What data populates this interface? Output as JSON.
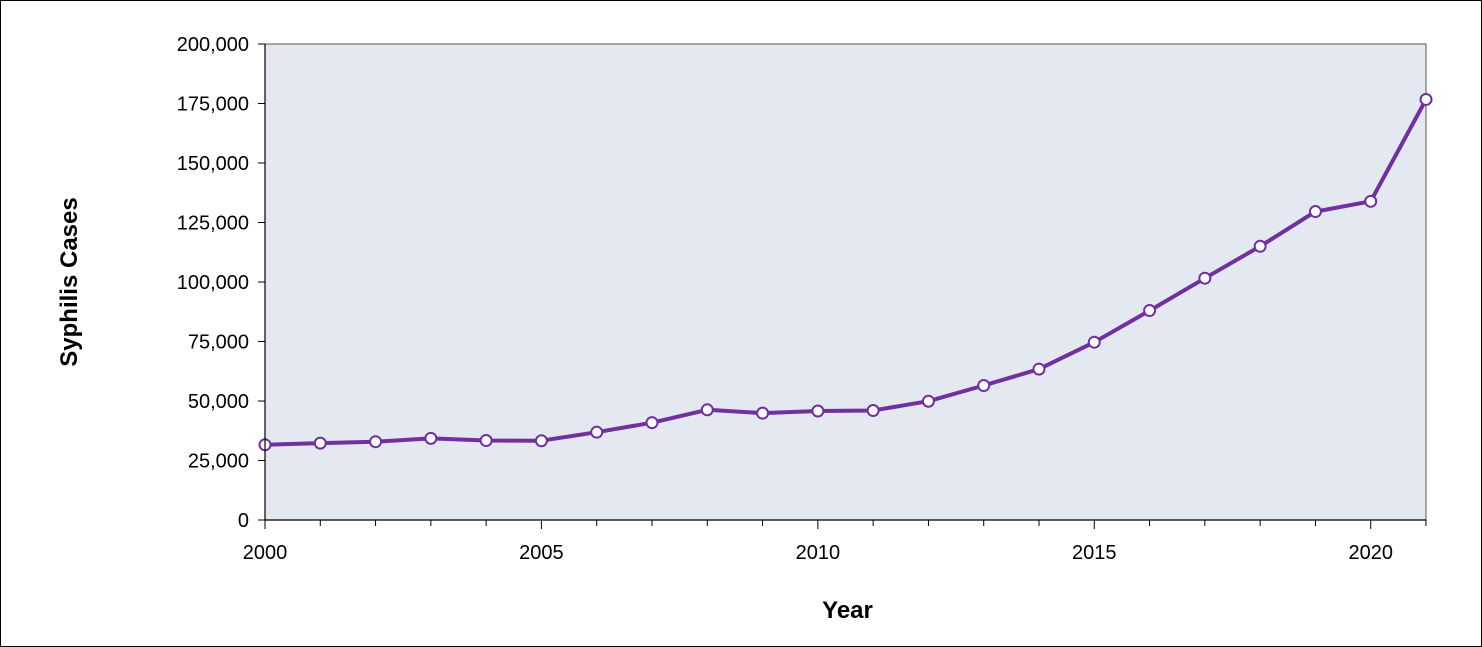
{
  "chart_data": {
    "type": "line",
    "title": "",
    "xlabel": "Year",
    "ylabel": "Syphilis  Cases",
    "xlim": [
      2000,
      2021
    ],
    "ylim": [
      0,
      200000
    ],
    "x_ticks": [
      2000,
      2005,
      2010,
      2015,
      2020
    ],
    "x_tick_labels": [
      "2000",
      "2005",
      "2010",
      "2015",
      "2020"
    ],
    "y_ticks": [
      0,
      25000,
      50000,
      75000,
      100000,
      125000,
      150000,
      175000,
      200000
    ],
    "y_tick_labels": [
      "0",
      "25,000",
      "50,000",
      "75,000",
      "100,000",
      "125,000",
      "150,000",
      "175,000",
      "200,000"
    ],
    "grid": false,
    "legend": "none",
    "series": [
      {
        "x": [
          2000,
          2001,
          2002,
          2003,
          2004,
          2005,
          2006,
          2007,
          2008,
          2009,
          2010,
          2011,
          2012,
          2013,
          2014,
          2015,
          2016,
          2017,
          2018,
          2019,
          2020,
          2021
        ],
        "values": [
          31600,
          32300,
          32900,
          34300,
          33400,
          33300,
          36900,
          40900,
          46300,
          44900,
          45800,
          46000,
          49900,
          56500,
          63400,
          74700,
          88000,
          101600,
          115000,
          129600,
          133900,
          176700
        ]
      }
    ],
    "colors": {
      "line": "#7030a0",
      "marker_fill": "#ffffff",
      "plot_background": "#e4e8f0",
      "axis": "#000000"
    }
  }
}
